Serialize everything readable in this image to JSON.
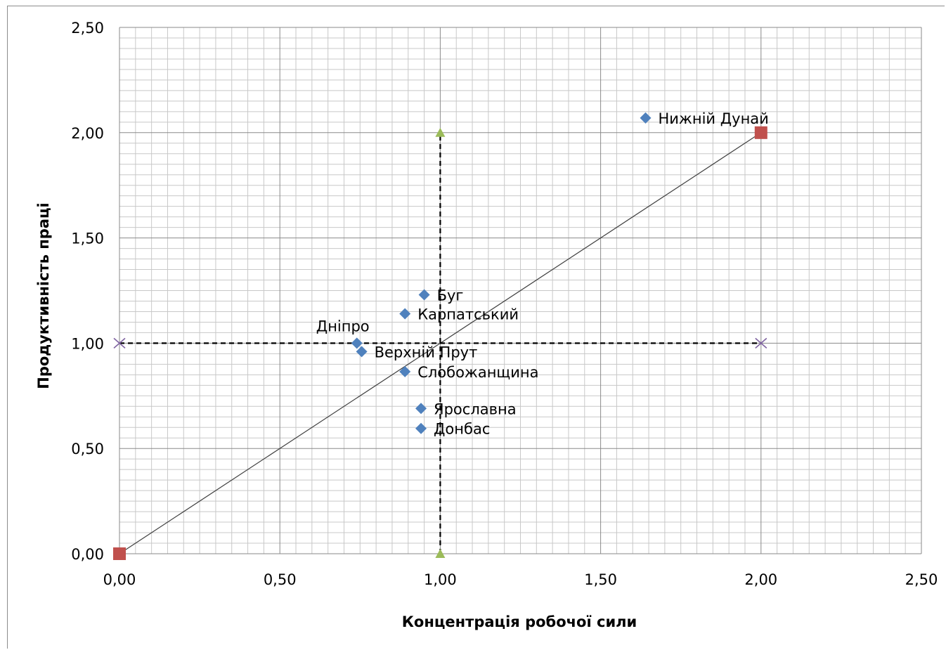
{
  "chart_data": {
    "type": "scatter",
    "title": "",
    "xlabel": "Концентрація робочої сили",
    "ylabel": "Продуктивність праці",
    "xlim": [
      0,
      2.5
    ],
    "ylim": [
      0,
      2.5
    ],
    "x_ticks": [
      "0,00",
      "0,50",
      "1,00",
      "1,50",
      "2,00",
      "2,50"
    ],
    "y_ticks": [
      "0,00",
      "0,50",
      "1,00",
      "1,50",
      "2,00",
      "2,50"
    ],
    "grid": true,
    "legend": "none",
    "regions": {
      "marker": "diamond",
      "color": "#4f81bd",
      "points": [
        {
          "label": "Нижній Дунай",
          "x": 1.64,
          "y": 2.07
        },
        {
          "label": "Буг",
          "x": 0.95,
          "y": 1.23
        },
        {
          "label": "Карпатський",
          "x": 0.89,
          "y": 1.14
        },
        {
          "label": "Дніпро",
          "x": 0.74,
          "y": 1.0
        },
        {
          "label": "Верхній Прут",
          "x": 0.755,
          "y": 0.96
        },
        {
          "label": "Слобожанщина",
          "x": 0.89,
          "y": 0.865
        },
        {
          "label": "Ярославна",
          "x": 0.94,
          "y": 0.69
        },
        {
          "label": "Донбас",
          "x": 0.94,
          "y": 0.595
        }
      ]
    },
    "diagonal_line": {
      "color": "#404040",
      "points": [
        {
          "x": 0,
          "y": 0
        },
        {
          "x": 2,
          "y": 2
        }
      ],
      "marker": "square",
      "marker_color": "#c0504d"
    },
    "vertical_divider": {
      "style": "dashed",
      "color": "#000000",
      "points": [
        {
          "x": 1,
          "y": 0
        },
        {
          "x": 1,
          "y": 2
        }
      ],
      "marker": "triangle",
      "marker_color": "#9bbb59"
    },
    "horizontal_divider": {
      "style": "dashed",
      "color": "#000000",
      "points": [
        {
          "x": 0,
          "y": 1
        },
        {
          "x": 2,
          "y": 1
        }
      ],
      "marker": "x",
      "marker_color": "#8064a2"
    }
  }
}
